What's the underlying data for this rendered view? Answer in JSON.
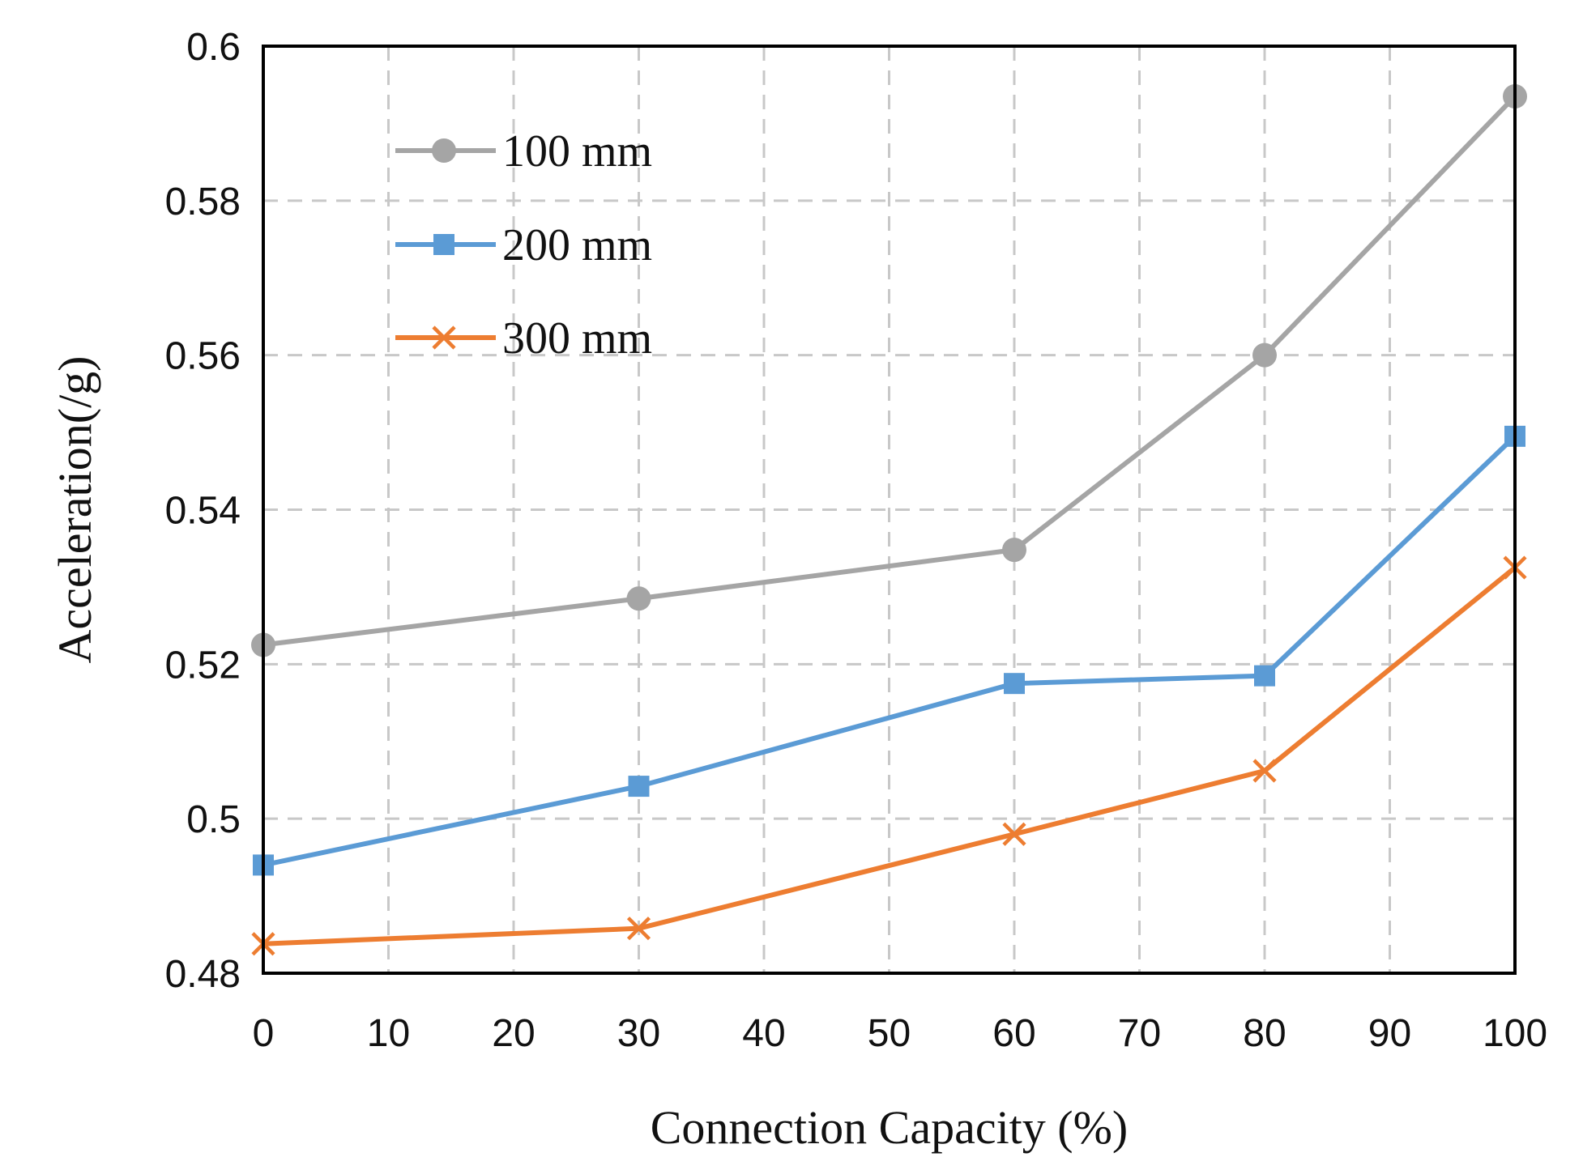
{
  "chart_data": {
    "type": "line",
    "title": "",
    "xlabel": "Connection Capacity (%)",
    "ylabel": "Acceleration(/g)",
    "xlim": [
      0,
      100
    ],
    "ylim": [
      0.48,
      0.6
    ],
    "x_ticks": [
      0,
      10,
      20,
      30,
      40,
      50,
      60,
      70,
      80,
      90,
      100
    ],
    "x_tick_labels": [
      "0",
      "10",
      "20",
      "30",
      "40",
      "50",
      "60",
      "70",
      "80",
      "90",
      "100"
    ],
    "y_ticks": [
      0.48,
      0.5,
      0.52,
      0.54,
      0.56,
      0.58,
      0.6
    ],
    "y_tick_labels": [
      "0.48",
      "0.5",
      "0.52",
      "0.54",
      "0.56",
      "0.58",
      "0.6"
    ],
    "grid": true,
    "legend_position": "top-left",
    "x": [
      0,
      30,
      60,
      80,
      100
    ],
    "series": [
      {
        "name": "100 mm",
        "color": "#a5a5a5",
        "marker": "circle",
        "values": [
          0.5225,
          0.5285,
          0.5348,
          0.56,
          0.5935
        ]
      },
      {
        "name": "200 mm",
        "color": "#5b9bd5",
        "marker": "square",
        "values": [
          0.494,
          0.5042,
          0.5175,
          0.5185,
          0.5495
        ]
      },
      {
        "name": "300 mm",
        "color": "#ed7d31",
        "marker": "x",
        "values": [
          0.4838,
          0.4858,
          0.498,
          0.5062,
          0.5325
        ]
      }
    ]
  }
}
